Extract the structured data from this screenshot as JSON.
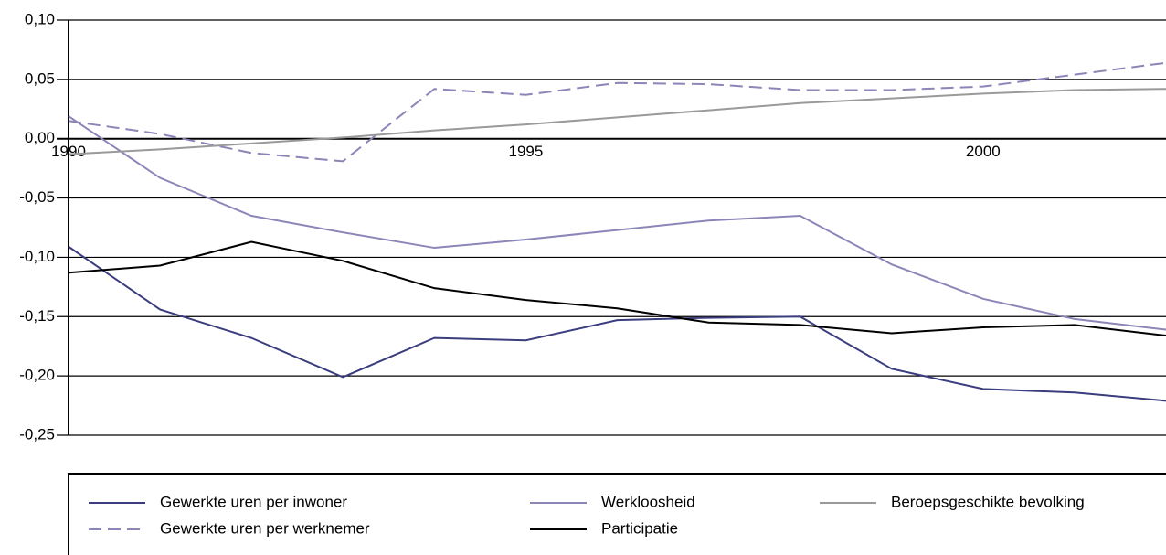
{
  "chart_data": {
    "type": "line",
    "x": [
      1990,
      1991,
      1992,
      1993,
      1994,
      1995,
      1996,
      1997,
      1998,
      1999,
      2000,
      2001,
      2002
    ],
    "xlim": [
      1990,
      2002
    ],
    "xticks": [
      1990,
      1995,
      2000
    ],
    "ylim": [
      -0.25,
      0.1
    ],
    "yticks": [
      {
        "value": -0.25,
        "label": "-0,25"
      },
      {
        "value": -0.2,
        "label": "-0,20"
      },
      {
        "value": -0.15,
        "label": "-0,15"
      },
      {
        "value": -0.1,
        "label": "-0,10"
      },
      {
        "value": -0.05,
        "label": "-0,05"
      },
      {
        "value": 0,
        "label": "0,00"
      },
      {
        "value": 0.05,
        "label": "0,05"
      },
      {
        "value": 0.1,
        "label": "0,10"
      }
    ],
    "grid": true,
    "legend": "bottom",
    "series": [
      {
        "name": "Gewerkte uren per inwoner",
        "color": "#3b3d7e",
        "dashed": false,
        "values": [
          -0.091,
          -0.144,
          -0.168,
          -0.201,
          -0.168,
          -0.17,
          -0.153,
          -0.151,
          -0.15,
          -0.194,
          -0.211,
          -0.214,
          -0.221
        ]
      },
      {
        "name": "Gewerkte uren per werknemer",
        "color": "#8b86b8",
        "dashed": true,
        "values": [
          0.015,
          0.004,
          -0.012,
          -0.019,
          0.042,
          0.037,
          0.047,
          0.046,
          0.041,
          0.041,
          0.044,
          0.054,
          0.064
        ]
      },
      {
        "name": "Werkloosheid",
        "color": "#8b86b8",
        "dashed": false,
        "values": [
          0.019,
          -0.033,
          -0.065,
          -0.079,
          -0.092,
          -0.085,
          -0.077,
          -0.069,
          -0.065,
          -0.106,
          -0.135,
          -0.152,
          -0.161
        ]
      },
      {
        "name": "Participatie",
        "color": "#000000",
        "dashed": false,
        "values": [
          -0.113,
          -0.107,
          -0.087,
          -0.103,
          -0.126,
          -0.136,
          -0.143,
          -0.155,
          -0.157,
          -0.164,
          -0.159,
          -0.157,
          -0.166
        ]
      },
      {
        "name": "Beroepsgeschikte bevolking",
        "color": "#9a9a9a",
        "dashed": false,
        "values": [
          -0.013,
          -0.009,
          -0.004,
          0.001,
          0.007,
          0.012,
          0.018,
          0.024,
          0.03,
          0.034,
          0.038,
          0.041,
          0.042
        ]
      }
    ]
  }
}
